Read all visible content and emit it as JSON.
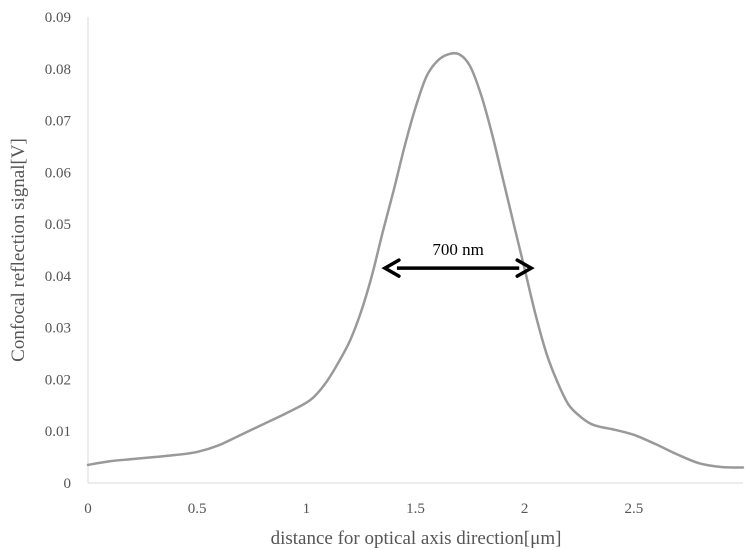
{
  "chart_data": {
    "type": "line",
    "title": "",
    "xlabel": "distance for optical axis direction[μm]",
    "ylabel": "Confocal reflection signal[V]",
    "xlim": [
      0,
      3
    ],
    "ylim": [
      0,
      0.09
    ],
    "x_ticks": [
      "0",
      "0.5",
      "1",
      "1.5",
      "2",
      "2.5"
    ],
    "y_ticks": [
      "0",
      "0.01",
      "0.02",
      "0.03",
      "0.04",
      "0.05",
      "0.06",
      "0.07",
      "0.08",
      "0.09"
    ],
    "grid": false,
    "legend": "none",
    "series": [
      {
        "color": "#999999",
        "x": [
          0,
          0.1,
          0.2,
          0.3,
          0.4,
          0.5,
          0.6,
          0.7,
          0.8,
          0.9,
          1.0,
          1.05,
          1.1,
          1.15,
          1.2,
          1.25,
          1.3,
          1.35,
          1.4,
          1.45,
          1.5,
          1.55,
          1.6,
          1.65,
          1.7,
          1.75,
          1.8,
          1.85,
          1.9,
          1.95,
          2.0,
          2.05,
          2.1,
          2.15,
          2.2,
          2.25,
          2.3,
          2.35,
          2.4,
          2.5,
          2.6,
          2.7,
          2.8,
          2.9,
          3.0
        ],
        "y": [
          0.0035,
          0.0042,
          0.0046,
          0.005,
          0.0054,
          0.006,
          0.0073,
          0.0093,
          0.0113,
          0.0133,
          0.0155,
          0.0173,
          0.02,
          0.0235,
          0.0275,
          0.033,
          0.04,
          0.0485,
          0.0565,
          0.065,
          0.0725,
          0.0785,
          0.0815,
          0.0828,
          0.0828,
          0.0805,
          0.075,
          0.0675,
          0.0588,
          0.05,
          0.0413,
          0.0325,
          0.025,
          0.0195,
          0.0152,
          0.013,
          0.0115,
          0.0108,
          0.0104,
          0.0093,
          0.0075,
          0.0055,
          0.0038,
          0.0031,
          0.003
        ]
      }
    ],
    "annotation": {
      "text": "700 nm",
      "x_start": 1.36,
      "x_end": 2.03,
      "y": 0.0415,
      "color": "#000000"
    }
  },
  "colors": {
    "axis": "#d9d9d9",
    "line": "#999999",
    "text": "#555555",
    "arrow": "#000000"
  }
}
